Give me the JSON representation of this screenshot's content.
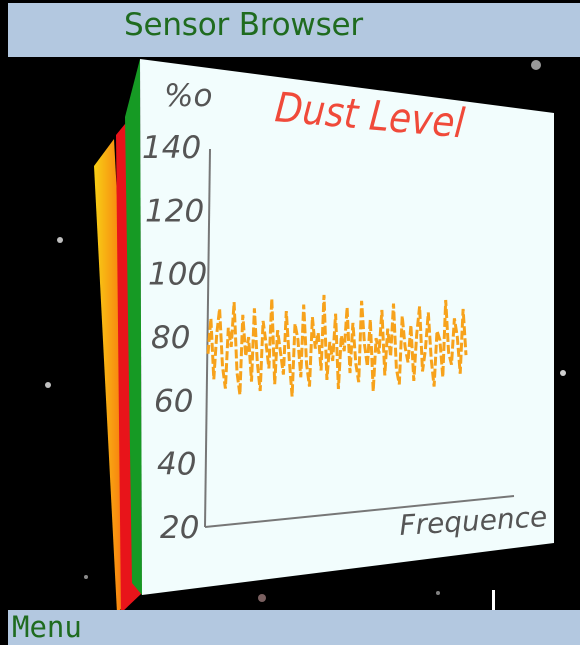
{
  "window": {
    "title": "Sensor Browser"
  },
  "softkeys": {
    "left": "Menu"
  },
  "colors": {
    "bar_bg": "#b3c8e0",
    "title_text": "#1f6b1f",
    "panel_bg": "#f2fdfd",
    "chart_title": "#f04a3a",
    "series": "#f7a21b",
    "side_green": "#169a24",
    "side_red": "#e8141a",
    "side_yellow": "#f8d015"
  },
  "chart_data": {
    "type": "line",
    "title": "Dust Level",
    "ylabel": "%o",
    "xlabel": "Frequence",
    "y_ticks": [
      "140",
      "120",
      "100",
      "80",
      "60",
      "40",
      "20"
    ],
    "ylim": [
      20,
      140
    ],
    "grid": false,
    "series": [
      {
        "values": [
          74,
          85,
          66,
          80,
          88,
          70,
          63,
          82,
          76,
          90,
          68,
          61,
          86,
          73,
          79,
          65,
          88,
          71,
          62,
          84,
          77,
          69,
          91,
          64,
          81,
          74,
          67,
          87,
          72,
          60,
          83,
          78,
          66,
          89,
          70,
          63,
          85,
          75,
          80,
          68,
          92,
          65,
          77,
          71,
          86,
          62,
          79,
          74,
          88,
          67,
          83,
          70,
          64,
          90,
          76,
          69,
          84,
          61,
          78,
          73,
          87,
          66,
          81,
          72,
          89,
          68,
          63,
          85,
          75,
          70,
          82,
          64,
          79,
          88,
          67,
          74,
          86,
          71,
          62,
          80,
          77,
          65,
          90,
          73,
          69,
          84,
          78,
          66,
          87,
          72
        ]
      }
    ]
  }
}
